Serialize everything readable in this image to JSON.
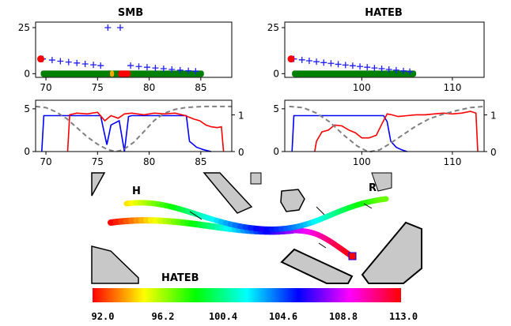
{
  "chart_data": [
    {
      "type": "scatter",
      "title": "SMB",
      "xlim": [
        69,
        88
      ],
      "ylim": [
        -2,
        28
      ],
      "xticks": [
        70,
        75,
        80,
        85
      ],
      "yticks": [
        0,
        25
      ],
      "series": [
        {
          "marker": "plus",
          "color": "#1f1fff",
          "points": [
            [
              69.7,
              8
            ],
            [
              70.6,
              7.4
            ],
            [
              71.4,
              6.8
            ],
            [
              72.2,
              6.3
            ],
            [
              73,
              5.8
            ],
            [
              73.8,
              5.3
            ],
            [
              74.6,
              4.8
            ],
            [
              75.3,
              4.4
            ],
            [
              76,
              25
            ],
            [
              77.2,
              25
            ],
            [
              78.2,
              4.4
            ],
            [
              79,
              3.9
            ],
            [
              79.8,
              3.5
            ],
            [
              80.6,
              3.1
            ],
            [
              81.4,
              2.7
            ],
            [
              82.2,
              2.3
            ],
            [
              83,
              1.9
            ],
            [
              83.8,
              1.6
            ],
            [
              84.5,
              1.3
            ]
          ]
        },
        {
          "marker": "dot",
          "color": "#ff0000",
          "points": [
            [
              69.5,
              8
            ]
          ]
        }
      ],
      "bars": [
        {
          "color": "#008000",
          "from": 69.5,
          "to": 85.3
        },
        {
          "color": "#ffa500",
          "from": 76.2,
          "to": 76.6
        },
        {
          "color": "#ff0000",
          "from": 77.0,
          "to": 78.2
        }
      ]
    },
    {
      "type": "scatter",
      "title": "HATEB",
      "xlim": [
        91.5,
        113.5
      ],
      "ylim": [
        -2,
        28
      ],
      "xticks": [
        100,
        110
      ],
      "yticks": [
        0,
        25
      ],
      "series": [
        {
          "marker": "plus",
          "color": "#1f1fff",
          "points": [
            [
              92.5,
              8
            ],
            [
              93.4,
              7.5
            ],
            [
              94.2,
              7
            ],
            [
              95,
              6.5
            ],
            [
              95.8,
              6
            ],
            [
              96.6,
              5.6
            ],
            [
              97.4,
              5.1
            ],
            [
              98.2,
              4.7
            ],
            [
              99,
              4.3
            ],
            [
              99.8,
              3.9
            ],
            [
              100.6,
              3.5
            ],
            [
              101.4,
              3.1
            ],
            [
              102.2,
              2.7
            ],
            [
              103,
              2.3
            ],
            [
              103.8,
              1.9
            ],
            [
              104.6,
              1.5
            ],
            [
              105.3,
              1.1
            ]
          ]
        },
        {
          "marker": "dot",
          "color": "#ff0000",
          "points": [
            [
              92.2,
              8
            ]
          ]
        }
      ],
      "bars": [
        {
          "color": "#008000",
          "from": 92.3,
          "to": 106.0
        }
      ]
    },
    {
      "type": "line",
      "xlim": [
        69,
        88
      ],
      "ylim": [
        0,
        6
      ],
      "y2lim": [
        0,
        1.4
      ],
      "xticks": [
        70,
        75,
        80,
        85
      ],
      "yticks": [
        0,
        5
      ],
      "y2ticks": [
        0,
        1
      ],
      "series": [
        {
          "color": "#0000ff",
          "axis": "left",
          "points": [
            [
              69.6,
              0
            ],
            [
              69.8,
              4.2
            ],
            [
              75.3,
              4.2
            ],
            [
              75.6,
              2.5
            ],
            [
              75.9,
              0.8
            ],
            [
              76.3,
              3.1
            ],
            [
              76.6,
              3.3
            ],
            [
              77.1,
              3.6
            ],
            [
              77.6,
              0
            ],
            [
              78,
              4.1
            ],
            [
              78.3,
              4.2
            ],
            [
              83.6,
              4.2
            ],
            [
              83.9,
              1.2
            ],
            [
              84.6,
              0.5
            ],
            [
              85.3,
              0.2
            ],
            [
              86,
              0
            ]
          ]
        },
        {
          "color": "#ff0000",
          "axis": "left",
          "points": [
            [
              72.1,
              0
            ],
            [
              72.3,
              4.3
            ],
            [
              73,
              4.5
            ],
            [
              74,
              4.4
            ],
            [
              75,
              4.6
            ],
            [
              75.7,
              3.6
            ],
            [
              76.3,
              4.2
            ],
            [
              77,
              3.9
            ],
            [
              77.6,
              4.4
            ],
            [
              78.3,
              4.5
            ],
            [
              79.5,
              4.3
            ],
            [
              80.5,
              4.5
            ],
            [
              81.5,
              4.4
            ],
            [
              82.5,
              4.5
            ],
            [
              83.5,
              4.2
            ],
            [
              84.3,
              3.8
            ],
            [
              84.9,
              3.6
            ],
            [
              85.5,
              3.1
            ],
            [
              86,
              2.9
            ],
            [
              86.6,
              2.8
            ],
            [
              87,
              2.9
            ],
            [
              87.2,
              0
            ]
          ]
        },
        {
          "color": "#808080",
          "axis": "right",
          "dashed": true,
          "points": [
            [
              69,
              1.23
            ],
            [
              70,
              1.2
            ],
            [
              71,
              1.08
            ],
            [
              72,
              0.9
            ],
            [
              73,
              0.65
            ],
            [
              74,
              0.4
            ],
            [
              75,
              0.2
            ],
            [
              76,
              0.05
            ],
            [
              76.8,
              0
            ],
            [
              77.5,
              0.05
            ],
            [
              78.5,
              0.25
            ],
            [
              79.5,
              0.55
            ],
            [
              80.5,
              0.85
            ],
            [
              81.5,
              1.05
            ],
            [
              82.5,
              1.15
            ],
            [
              83.5,
              1.2
            ],
            [
              84.5,
              1.22
            ],
            [
              85.5,
              1.23
            ],
            [
              86.5,
              1.23
            ],
            [
              88,
              1.23
            ]
          ]
        }
      ]
    },
    {
      "type": "line",
      "xlim": [
        91.5,
        113.5
      ],
      "ylim": [
        0,
        6
      ],
      "y2lim": [
        0,
        1.4
      ],
      "xticks": [
        100,
        110
      ],
      "yticks": [
        0,
        5
      ],
      "y2ticks": [
        0,
        1
      ],
      "series": [
        {
          "color": "#0000ff",
          "axis": "left",
          "points": [
            [
              92.3,
              0
            ],
            [
              92.5,
              4.2
            ],
            [
              102.4,
              4.2
            ],
            [
              102.8,
              3.5
            ],
            [
              103.2,
              1.2
            ],
            [
              103.8,
              0.5
            ],
            [
              104.4,
              0.2
            ],
            [
              105,
              0
            ]
          ]
        },
        {
          "color": "#ff0000",
          "axis": "left",
          "points": [
            [
              94.8,
              0
            ],
            [
              95,
              1.2
            ],
            [
              95.6,
              2.3
            ],
            [
              96.3,
              2.5
            ],
            [
              97,
              3.1
            ],
            [
              97.8,
              3
            ],
            [
              98.6,
              2.5
            ],
            [
              99.3,
              2.2
            ],
            [
              100,
              1.6
            ],
            [
              100.8,
              1.6
            ],
            [
              101.6,
              1.9
            ],
            [
              102.3,
              3.4
            ],
            [
              102.8,
              4.4
            ],
            [
              103.3,
              4.3
            ],
            [
              104,
              4.1
            ],
            [
              105,
              4.2
            ],
            [
              106,
              4.3
            ],
            [
              107,
              4.3
            ],
            [
              108,
              4.4
            ],
            [
              109,
              4.5
            ],
            [
              110,
              4.4
            ],
            [
              111,
              4.5
            ],
            [
              112,
              4.7
            ],
            [
              112.6,
              4.5
            ],
            [
              112.8,
              0
            ]
          ]
        },
        {
          "color": "#808080",
          "axis": "right",
          "dashed": true,
          "points": [
            [
              92,
              1.23
            ],
            [
              93.5,
              1.2
            ],
            [
              95,
              1.05
            ],
            [
              96.5,
              0.8
            ],
            [
              98,
              0.45
            ],
            [
              99.5,
              0.15
            ],
            [
              100.5,
              0.02
            ],
            [
              101,
              0
            ],
            [
              102,
              0.05
            ],
            [
              103,
              0.2
            ],
            [
              104.5,
              0.45
            ],
            [
              106,
              0.7
            ],
            [
              107.5,
              0.9
            ],
            [
              109,
              1.02
            ],
            [
              110.5,
              1.12
            ],
            [
              112,
              1.2
            ],
            [
              113.5,
              1.23
            ]
          ]
        }
      ]
    }
  ],
  "map": {
    "title": "HATEB",
    "label_h": "H",
    "label_r": "R"
  },
  "colorbar": {
    "ticks": [
      "92.0",
      "96.2",
      "100.4",
      "104.6",
      "108.8",
      "113.0"
    ],
    "colors": [
      "#ff0000",
      "#ffff00",
      "#00ff00",
      "#00ffff",
      "#0000ff",
      "#ff00ff",
      "#ff0000"
    ]
  }
}
